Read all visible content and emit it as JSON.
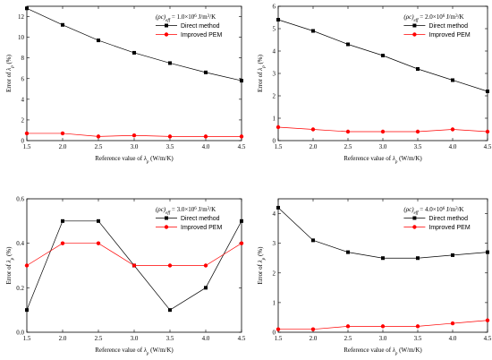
{
  "colors": {
    "direct": "#000000",
    "pem": "#ff0000",
    "axis": "#000000"
  },
  "chart_data": [
    {
      "type": "line",
      "annotation": "(ρc)eff = 1.0×10⁶ J/m³/K",
      "xlabel": "Reference value of λp (W/m/K)",
      "ylabel": "Error of λp (%)",
      "x": [
        1.5,
        2.0,
        2.5,
        3.0,
        3.5,
        4.0,
        4.5
      ],
      "xlim": [
        1.5,
        4.5
      ],
      "xticks": [
        "1.5",
        "2.0",
        "2.5",
        "3.0",
        "3.5",
        "4.0",
        "4.5"
      ],
      "ylim": [
        0,
        13
      ],
      "yticks": [
        "0",
        "2",
        "4",
        "6",
        "8",
        "10",
        "12"
      ],
      "ytick_values": [
        0,
        2,
        4,
        6,
        8,
        10,
        12
      ],
      "legend_position": "top-right",
      "series": [
        {
          "name": "Direct method",
          "values": [
            12.8,
            11.2,
            9.7,
            8.5,
            7.5,
            6.6,
            5.8
          ]
        },
        {
          "name": "Improved PEM",
          "values": [
            0.7,
            0.7,
            0.4,
            0.5,
            0.4,
            0.4,
            0.4
          ]
        }
      ]
    },
    {
      "type": "line",
      "annotation": "(ρc)eff = 2.0×10⁶ J/m³/K",
      "xlabel": "Reference value of λp (W/m/K)",
      "ylabel": "Error of λp (%)",
      "x": [
        1.5,
        2.0,
        2.5,
        3.0,
        3.5,
        4.0,
        4.5
      ],
      "xlim": [
        1.5,
        4.5
      ],
      "xticks": [
        "1.5",
        "2.0",
        "2.5",
        "3.0",
        "3.5",
        "4.0",
        "4.5"
      ],
      "ylim": [
        0,
        6
      ],
      "yticks": [
        "0",
        "1",
        "2",
        "3",
        "4",
        "5",
        "6"
      ],
      "ytick_values": [
        0,
        1,
        2,
        3,
        4,
        5,
        6
      ],
      "legend_position": "top-right",
      "series": [
        {
          "name": "Direct method",
          "values": [
            5.4,
            4.9,
            4.3,
            3.8,
            3.2,
            2.7,
            2.2
          ]
        },
        {
          "name": "Improved PEM",
          "values": [
            0.6,
            0.5,
            0.4,
            0.4,
            0.4,
            0.5,
            0.4
          ]
        }
      ]
    },
    {
      "type": "line",
      "annotation": "(ρc)eff = 3.0×10⁶ J/m³/K",
      "xlabel": "Reference value of λp (W/m/K)",
      "ylabel": "Error of λp (%)",
      "x": [
        1.5,
        2.0,
        2.5,
        3.0,
        3.5,
        4.0,
        4.5
      ],
      "xlim": [
        1.5,
        4.5
      ],
      "xticks": [
        "1.5",
        "2.0",
        "2.5",
        "3.0",
        "3.5",
        "4.0",
        "4.5"
      ],
      "ylim": [
        0,
        0.6
      ],
      "yticks": [
        "0.0",
        "0.2",
        "0.4",
        "0.6"
      ],
      "ytick_values": [
        0,
        0.2,
        0.4,
        0.6
      ],
      "legend_position": "top-right",
      "series": [
        {
          "name": "Direct method",
          "values": [
            0.1,
            0.5,
            0.5,
            0.3,
            0.1,
            0.2,
            0.5
          ]
        },
        {
          "name": "Improved PEM",
          "values": [
            0.3,
            0.4,
            0.4,
            0.3,
            0.3,
            0.3,
            0.4
          ]
        }
      ]
    },
    {
      "type": "line",
      "annotation": "(ρc)eff = 4.0×10⁶ J/m³/K",
      "xlabel": "Reference value of λp (W/m/K)",
      "ylabel": "Error of λp (%)",
      "x": [
        1.5,
        2.0,
        2.5,
        3.0,
        3.5,
        4.0,
        4.5
      ],
      "xlim": [
        1.5,
        4.5
      ],
      "xticks": [
        "1.5",
        "2.0",
        "2.5",
        "3.0",
        "3.5",
        "4.0",
        "4.5"
      ],
      "ylim": [
        0,
        4.5
      ],
      "yticks": [
        "0",
        "1",
        "2",
        "3",
        "4"
      ],
      "ytick_values": [
        0,
        1,
        2,
        3,
        4
      ],
      "legend_position": "top-right",
      "series": [
        {
          "name": "Direct method",
          "values": [
            4.2,
            3.1,
            2.7,
            2.5,
            2.5,
            2.6,
            2.7
          ]
        },
        {
          "name": "Improved PEM",
          "values": [
            0.1,
            0.1,
            0.2,
            0.2,
            0.2,
            0.3,
            0.4
          ]
        }
      ]
    }
  ]
}
